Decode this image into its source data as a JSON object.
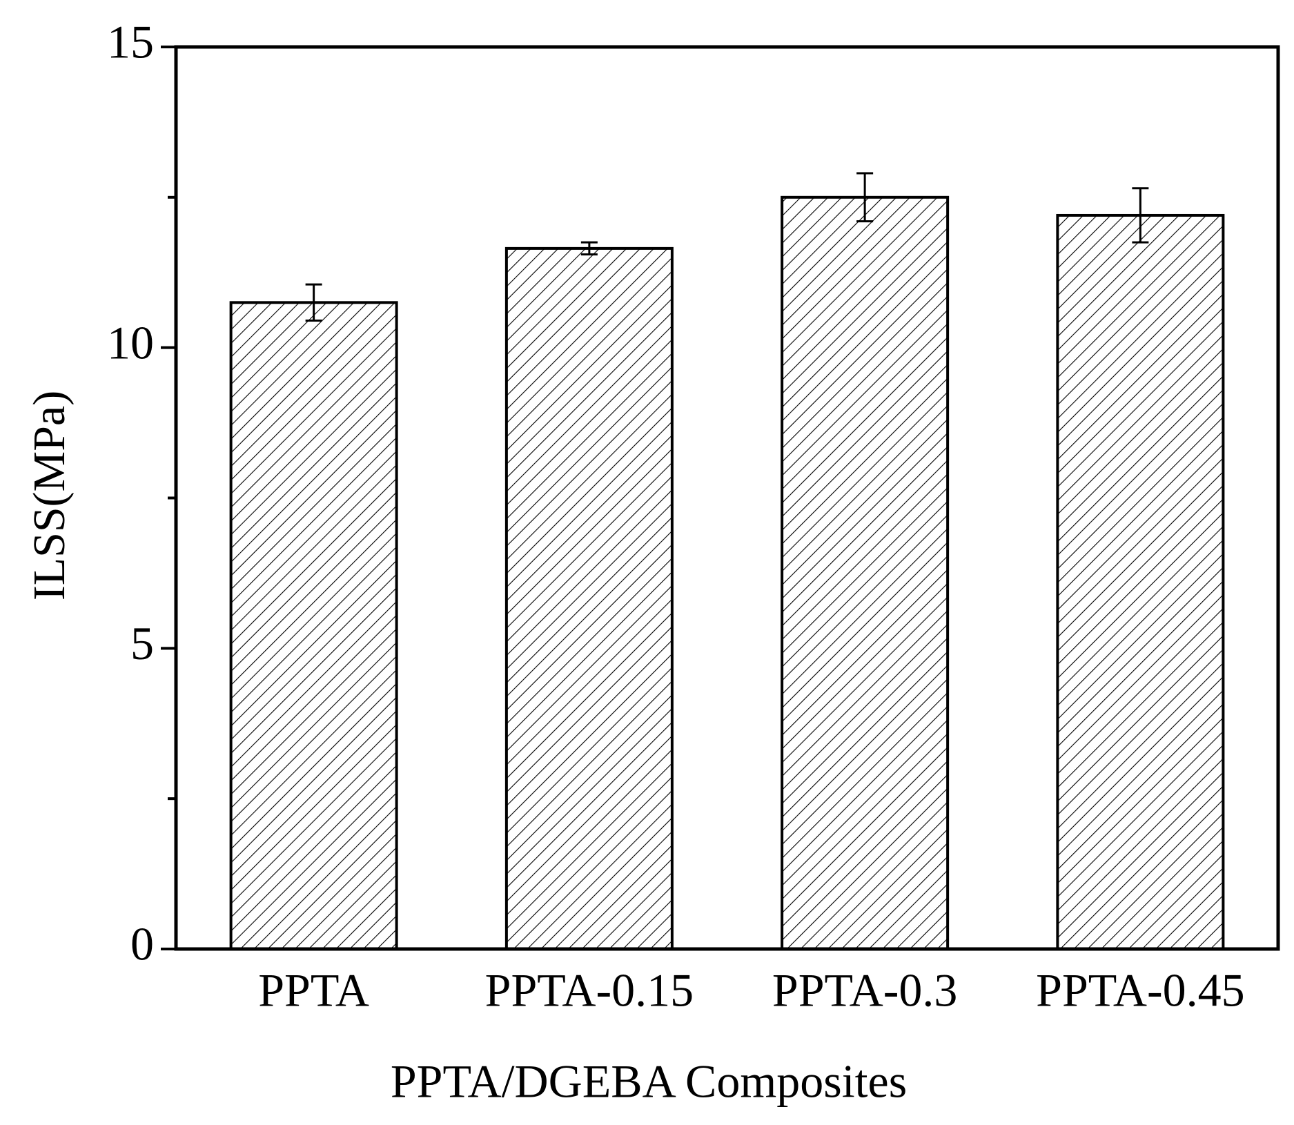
{
  "chart_data": {
    "type": "bar",
    "x_label": "PPTA/DGEBA Composites",
    "y_label": "ILSS(MPa)",
    "categories": [
      "PPTA",
      "PPTA-0.15",
      "PPTA-0.3",
      "PPTA-0.45"
    ],
    "values": [
      10.75,
      11.65,
      12.5,
      12.2
    ],
    "errors": [
      0.3,
      0.1,
      0.4,
      0.45
    ],
    "color": "#000000",
    "hatch": true,
    "ylim": [
      0,
      15
    ],
    "yticks": [
      0,
      5,
      10,
      15
    ],
    "yminorticks": [
      2.5,
      7.5,
      12.5
    ]
  }
}
